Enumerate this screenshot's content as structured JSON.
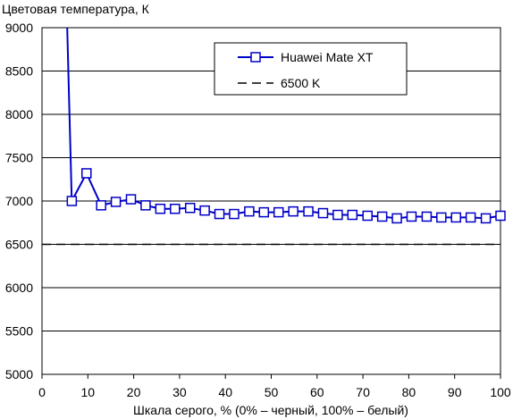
{
  "chart_data": {
    "type": "line",
    "title": "Цветовая температура, К",
    "xlabel": "Шкала серого, % (0% – черный, 100% – белый)",
    "ylabel": "",
    "xlim": [
      0,
      100
    ],
    "ylim": [
      5000,
      9000
    ],
    "xticks": [
      "0",
      "10",
      "20",
      "30",
      "40",
      "50",
      "60",
      "70",
      "80",
      "90",
      "100"
    ],
    "yticks": [
      "5000",
      "5500",
      "6000",
      "6500",
      "7000",
      "7500",
      "8000",
      "8500",
      "9000"
    ],
    "grid": "horizontal",
    "legend": "top-right",
    "series": [
      {
        "name": "Huawei Mate XT",
        "color": "#0000c8",
        "marker": "square",
        "x": [
          5.5,
          6.5,
          9.7,
          12.9,
          16.1,
          19.4,
          22.6,
          25.8,
          29.0,
          32.3,
          35.5,
          38.7,
          41.9,
          45.2,
          48.4,
          51.6,
          54.8,
          58.1,
          61.3,
          64.5,
          67.7,
          71.0,
          74.2,
          77.4,
          80.6,
          83.9,
          87.1,
          90.3,
          93.5,
          96.8,
          100
        ],
        "y": [
          9000,
          7000,
          7320,
          6950,
          6990,
          7020,
          6950,
          6910,
          6910,
          6920,
          6890,
          6850,
          6850,
          6880,
          6870,
          6870,
          6880,
          6880,
          6860,
          6840,
          6840,
          6830,
          6820,
          6800,
          6820,
          6820,
          6810,
          6810,
          6810,
          6800,
          6830
        ],
        "markers_from_index": 1
      },
      {
        "name": "6500 K",
        "color": "#000000",
        "style": "dashed",
        "x": [
          0,
          100
        ],
        "y": [
          6500,
          6500
        ]
      }
    ]
  }
}
